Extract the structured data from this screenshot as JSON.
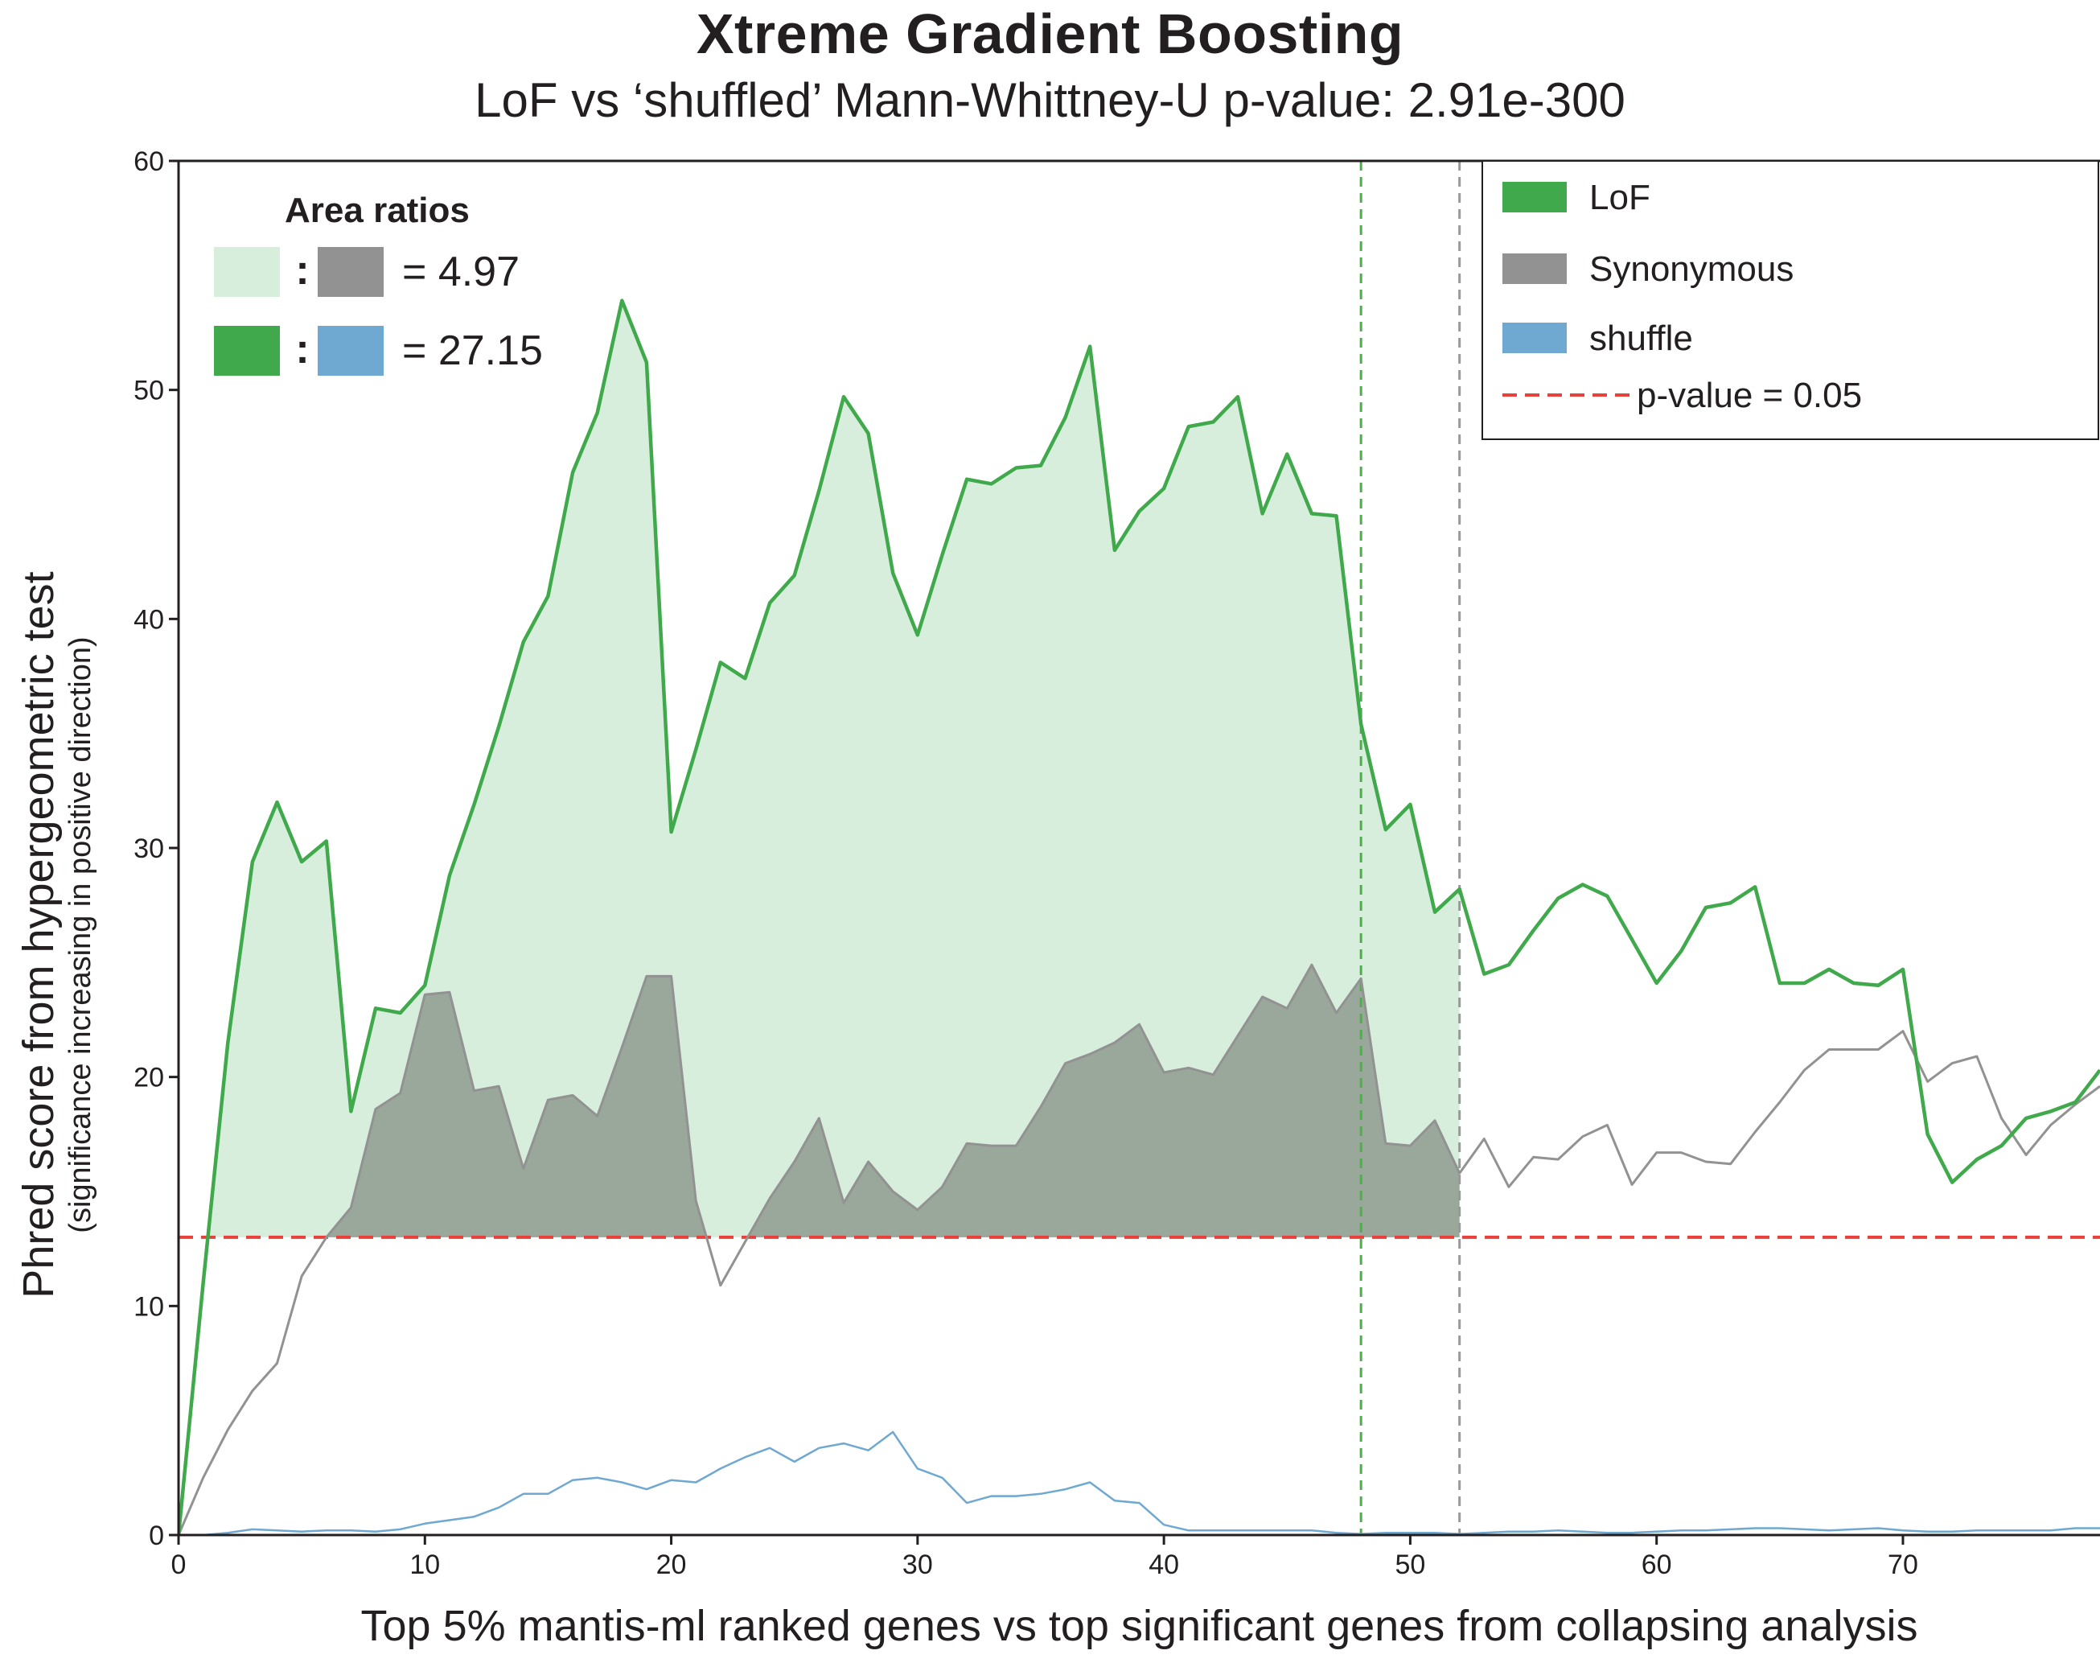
{
  "chart_data": {
    "type": "line",
    "title": "Xtreme Gradient Boosting",
    "subtitle": "LoF vs ‘shuffled’ Mann-Whittney-U p-value: 2.91e-300",
    "ylabel": "Phred score from hypergeometric test",
    "ylabel_sub": "(significance increasing in positive direction)",
    "xlabel": "Top 5% mantis-ml ranked genes vs top significant genes from collapsing analysis",
    "xlim": [
      0,
      78
    ],
    "ylim": [
      0,
      60
    ],
    "xticks": [
      "0",
      "10",
      "20",
      "30",
      "40",
      "50",
      "60",
      "70"
    ],
    "yticks": [
      "0",
      "10",
      "20",
      "30",
      "40",
      "50",
      "60"
    ],
    "grid": false,
    "legend_position": "top-right",
    "threshold": {
      "label": "p-value = 0.05",
      "y": 13.0,
      "color": "#e8403b"
    },
    "vertical_markers": [
      {
        "x": 48,
        "color": "#4daf4a"
      },
      {
        "x": 52,
        "color": "#999999"
      }
    ],
    "x": [
      0,
      1,
      2,
      3,
      4,
      5,
      6,
      7,
      8,
      9,
      10,
      11,
      12,
      13,
      14,
      15,
      16,
      17,
      18,
      19,
      20,
      21,
      22,
      23,
      24,
      25,
      26,
      27,
      28,
      29,
      30,
      31,
      32,
      33,
      34,
      35,
      36,
      37,
      38,
      39,
      40,
      41,
      42,
      43,
      44,
      45,
      46,
      47,
      48,
      49,
      50,
      51,
      52,
      53,
      54,
      55,
      56,
      57,
      58,
      59,
      60,
      61,
      62,
      63,
      64,
      65,
      66,
      67,
      68,
      69,
      70,
      71,
      72,
      73,
      74,
      75,
      76,
      77,
      78
    ],
    "series": [
      {
        "name": "LoF",
        "color": "#40a94b",
        "values": [
          0,
          11,
          21.5,
          29.4,
          32.0,
          29.4,
          30.3,
          18.5,
          23.0,
          22.8,
          24.0,
          28.8,
          31.9,
          35.3,
          39.0,
          41.0,
          46.4,
          49.0,
          53.9,
          51.2,
          30.7,
          34.3,
          38.1,
          37.4,
          40.7,
          41.9,
          45.6,
          49.7,
          48.1,
          42.0,
          39.3,
          42.8,
          46.1,
          45.9,
          46.6,
          46.7,
          48.8,
          51.9,
          43.0,
          44.7,
          45.7,
          48.4,
          48.6,
          49.7,
          44.6,
          47.2,
          44.6,
          44.5,
          35.4,
          30.8,
          31.9,
          27.2,
          28.2,
          24.5,
          24.9,
          26.4,
          27.8,
          28.4,
          27.9,
          26.0,
          24.1,
          25.5,
          27.4,
          27.6,
          28.3,
          24.1,
          24.1,
          24.7,
          24.1,
          24.0,
          24.7,
          17.5,
          15.4,
          16.4,
          17.0,
          18.2,
          18.5,
          18.9,
          20.3
        ]
      },
      {
        "name": "Synonymous",
        "color": "#929292",
        "values": [
          0,
          2.5,
          4.6,
          6.3,
          7.5,
          11.3,
          13.0,
          14.3,
          18.6,
          19.3,
          23.6,
          23.7,
          19.4,
          19.6,
          16.0,
          19.0,
          19.2,
          18.3,
          21.3,
          24.4,
          24.4,
          14.6,
          10.9,
          12.8,
          14.7,
          16.3,
          18.2,
          14.5,
          16.3,
          15.0,
          14.2,
          15.2,
          17.1,
          17.0,
          17.0,
          18.7,
          20.6,
          21.0,
          21.5,
          22.3,
          20.2,
          20.4,
          20.1,
          21.8,
          23.5,
          23.0,
          24.9,
          22.8,
          24.3,
          17.1,
          17.0,
          18.1,
          15.8,
          17.3,
          15.2,
          16.5,
          16.4,
          17.4,
          17.9,
          15.3,
          16.7,
          16.7,
          16.3,
          16.2,
          17.6,
          18.9,
          20.3,
          21.2,
          21.2,
          21.2,
          22.0,
          19.8,
          20.6,
          20.9,
          18.2,
          16.6,
          17.9,
          18.8,
          19.6
        ]
      },
      {
        "name": "shuffle",
        "color": "#6fa8d0",
        "values": [
          0,
          0,
          0.1,
          0.25,
          0.2,
          0.15,
          0.2,
          0.2,
          0.15,
          0.25,
          0.5,
          0.65,
          0.8,
          1.2,
          1.8,
          1.8,
          2.4,
          2.5,
          2.3,
          2.0,
          2.4,
          2.3,
          2.9,
          3.4,
          3.8,
          3.2,
          3.8,
          4.0,
          3.7,
          4.5,
          2.9,
          2.5,
          1.4,
          1.7,
          1.7,
          1.8,
          2.0,
          2.3,
          1.5,
          1.4,
          0.45,
          0.2,
          0.2,
          0.2,
          0.2,
          0.2,
          0.2,
          0.1,
          0.05,
          0.1,
          0.1,
          0.1,
          0.05,
          0.1,
          0.15,
          0.15,
          0.2,
          0.15,
          0.1,
          0.1,
          0.15,
          0.2,
          0.2,
          0.25,
          0.3,
          0.3,
          0.25,
          0.2,
          0.25,
          0.3,
          0.2,
          0.15,
          0.15,
          0.2,
          0.2,
          0.2,
          0.2,
          0.3,
          0.3
        ]
      }
    ],
    "area_ratios": {
      "heading": "Area ratios",
      "rows": [
        {
          "left_color": "#d8eedd",
          "right_color": "#929292",
          "separator": ":",
          "text": "= 4.97"
        },
        {
          "left_color": "#40a94b",
          "right_color": "#6fa8d0",
          "separator": ":",
          "text": "= 27.15"
        }
      ]
    },
    "fills": {
      "lof_area": "#d8eedd",
      "syn_area": "#9aa89b"
    }
  }
}
